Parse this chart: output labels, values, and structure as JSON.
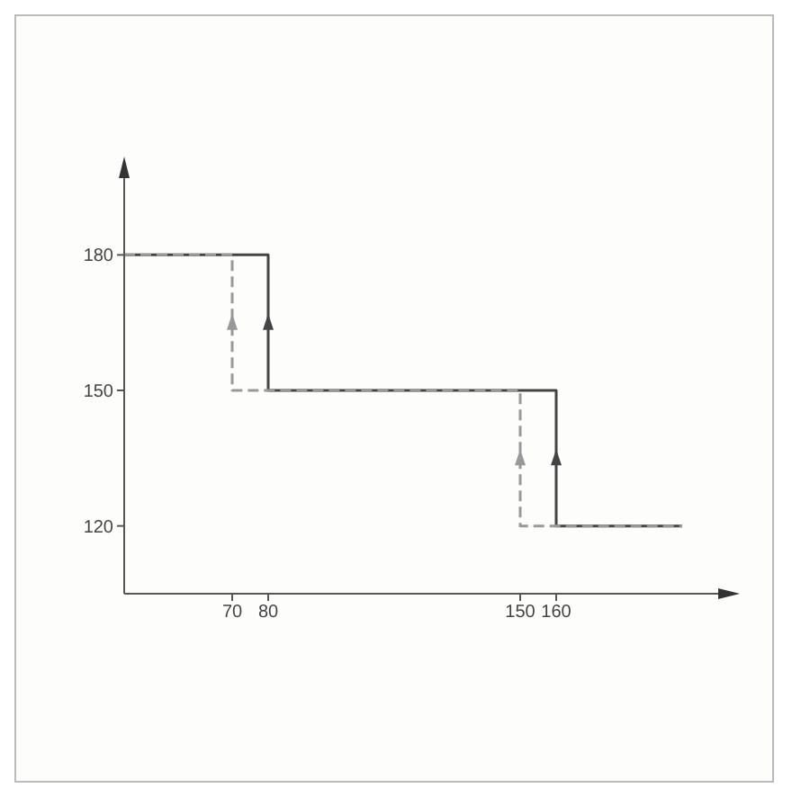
{
  "chart_data": {
    "type": "step",
    "series": [
      {
        "color": "#999999",
        "values": [
          180,
          150,
          120,
          120
        ],
        "x": [
          40,
          70,
          150,
          195
        ],
        "line_style": "dashed"
      },
      {
        "color": "#444444",
        "values": [
          180,
          150,
          120,
          120
        ],
        "x": [
          40,
          80,
          160,
          195
        ],
        "line_style": "solid"
      }
    ],
    "xlim": [
      40,
      205
    ],
    "xticks": [
      70,
      80,
      150,
      160
    ],
    "ylim": [
      105,
      197
    ],
    "yticks": [
      120,
      150,
      180
    ],
    "marker": "none"
  }
}
